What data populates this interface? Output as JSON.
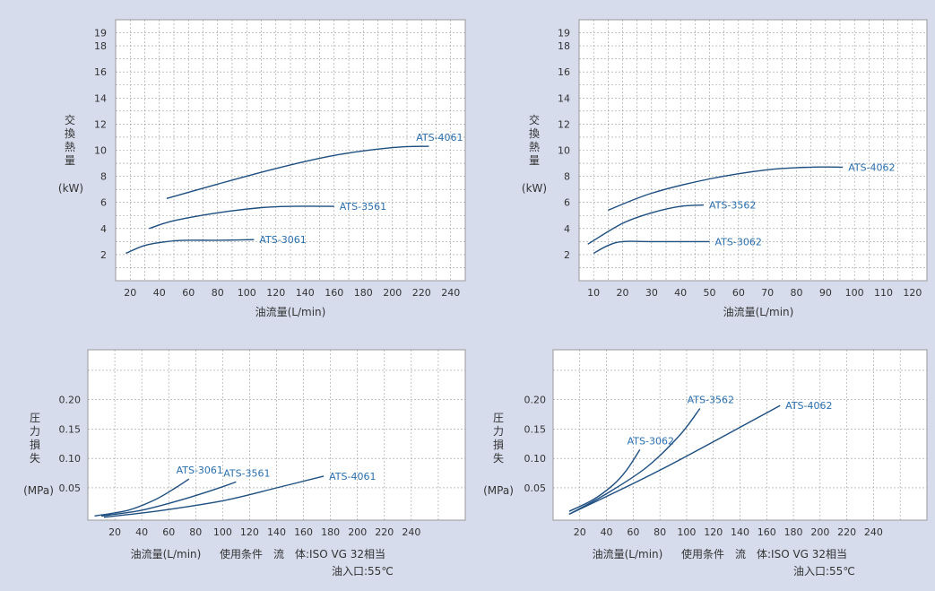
{
  "colors": {
    "background": "#d7dcec",
    "plot_bg": "#ffffff",
    "grid": "#9a9a9a",
    "curve": "#1d4e80",
    "curve_label": "#2a6fae",
    "text": "#333333"
  },
  "chart_data": [
    {
      "type": "line",
      "ylabel": "交換熱量",
      "yunit": "(kW)",
      "xlabel": "油流量(L/min)",
      "xlim": [
        10,
        250
      ],
      "ylim": [
        0,
        20
      ],
      "xticks": [
        20,
        40,
        60,
        80,
        100,
        120,
        140,
        160,
        180,
        200,
        220,
        240
      ],
      "yticks": [
        2,
        4,
        6,
        8,
        10,
        12,
        14,
        16,
        18,
        19
      ],
      "series": [
        {
          "name": "ATS-3061",
          "x": [
            17,
            30,
            45,
            58,
            80,
            105
          ],
          "y": [
            2.1,
            2.7,
            3.0,
            3.1,
            3.1,
            3.15
          ]
        },
        {
          "name": "ATS-3561",
          "x": [
            33,
            50,
            80,
            110,
            130,
            160
          ],
          "y": [
            4.0,
            4.6,
            5.2,
            5.6,
            5.7,
            5.7
          ]
        },
        {
          "name": "ATS-4061",
          "x": [
            45,
            80,
            120,
            160,
            200,
            225
          ],
          "y": [
            6.3,
            7.4,
            8.6,
            9.6,
            10.2,
            10.3
          ]
        }
      ]
    },
    {
      "type": "line",
      "ylabel": "交換熱量",
      "yunit": "(kW)",
      "xlabel": "油流量(L/min)",
      "xlim": [
        5,
        125
      ],
      "ylim": [
        0,
        20
      ],
      "xticks": [
        10,
        20,
        30,
        40,
        50,
        60,
        70,
        80,
        90,
        100,
        110,
        120
      ],
      "yticks": [
        2,
        4,
        6,
        8,
        10,
        12,
        14,
        16,
        18,
        19
      ],
      "series": [
        {
          "name": "ATS-3062",
          "x": [
            10,
            15,
            20,
            30,
            50
          ],
          "y": [
            2.1,
            2.7,
            3.0,
            3.0,
            3.0
          ]
        },
        {
          "name": "ATS-3562",
          "x": [
            8,
            20,
            30,
            40,
            48
          ],
          "y": [
            2.8,
            4.4,
            5.2,
            5.7,
            5.8
          ]
        },
        {
          "name": "ATS-4062",
          "x": [
            15,
            30,
            50,
            70,
            85,
            96
          ],
          "y": [
            5.4,
            6.7,
            7.8,
            8.5,
            8.7,
            8.7
          ]
        }
      ]
    },
    {
      "type": "line",
      "ylabel": "圧力損失",
      "yunit": "(MPa)",
      "xlabel": "油流量(L/min)",
      "condition": "使用条件　流　体:ISO VG 32相当",
      "condition2": "油入口:55℃",
      "xlim": [
        0,
        280
      ],
      "ylim": [
        -0.005,
        0.285
      ],
      "xticks": [
        20,
        40,
        60,
        80,
        100,
        120,
        140,
        160,
        180,
        200,
        220,
        240
      ],
      "yticks": [
        0.05,
        0.1,
        0.15,
        0.2
      ],
      "ytick_labels": [
        "0.05",
        "0.10",
        "0.15",
        "0.20"
      ],
      "series": [
        {
          "name": "ATS-3061",
          "x": [
            5,
            30,
            50,
            65,
            75
          ],
          "y": [
            0.002,
            0.012,
            0.03,
            0.05,
            0.065
          ]
        },
        {
          "name": "ATS-3561",
          "x": [
            10,
            40,
            70,
            95,
            110
          ],
          "y": [
            0.002,
            0.012,
            0.03,
            0.048,
            0.06
          ]
        },
        {
          "name": "ATS-4061",
          "x": [
            12,
            50,
            100,
            140,
            175
          ],
          "y": [
            0.0,
            0.01,
            0.028,
            0.05,
            0.07
          ]
        }
      ]
    },
    {
      "type": "line",
      "ylabel": "圧力損失",
      "yunit": "(MPa)",
      "xlabel": "油流量(L/min)",
      "condition": "使用条件　流　体:ISO VG 32相当",
      "condition2": "油入口:55℃",
      "xlim": [
        0,
        280
      ],
      "ylim": [
        -0.005,
        0.285
      ],
      "xticks": [
        20,
        40,
        60,
        80,
        100,
        120,
        140,
        160,
        180,
        200,
        220,
        240
      ],
      "yticks": [
        0.05,
        0.1,
        0.15,
        0.2
      ],
      "ytick_labels": [
        "0.05",
        "0.10",
        "0.15",
        "0.20"
      ],
      "series": [
        {
          "name": "ATS-3062",
          "x": [
            12,
            30,
            45,
            55,
            65
          ],
          "y": [
            0.01,
            0.03,
            0.055,
            0.08,
            0.115
          ]
        },
        {
          "name": "ATS-3562",
          "x": [
            12,
            40,
            70,
            95,
            110
          ],
          "y": [
            0.005,
            0.04,
            0.085,
            0.14,
            0.185
          ]
        },
        {
          "name": "ATS-4062",
          "x": [
            12,
            80,
            170
          ],
          "y": [
            0.005,
            0.08,
            0.19
          ]
        }
      ]
    }
  ]
}
